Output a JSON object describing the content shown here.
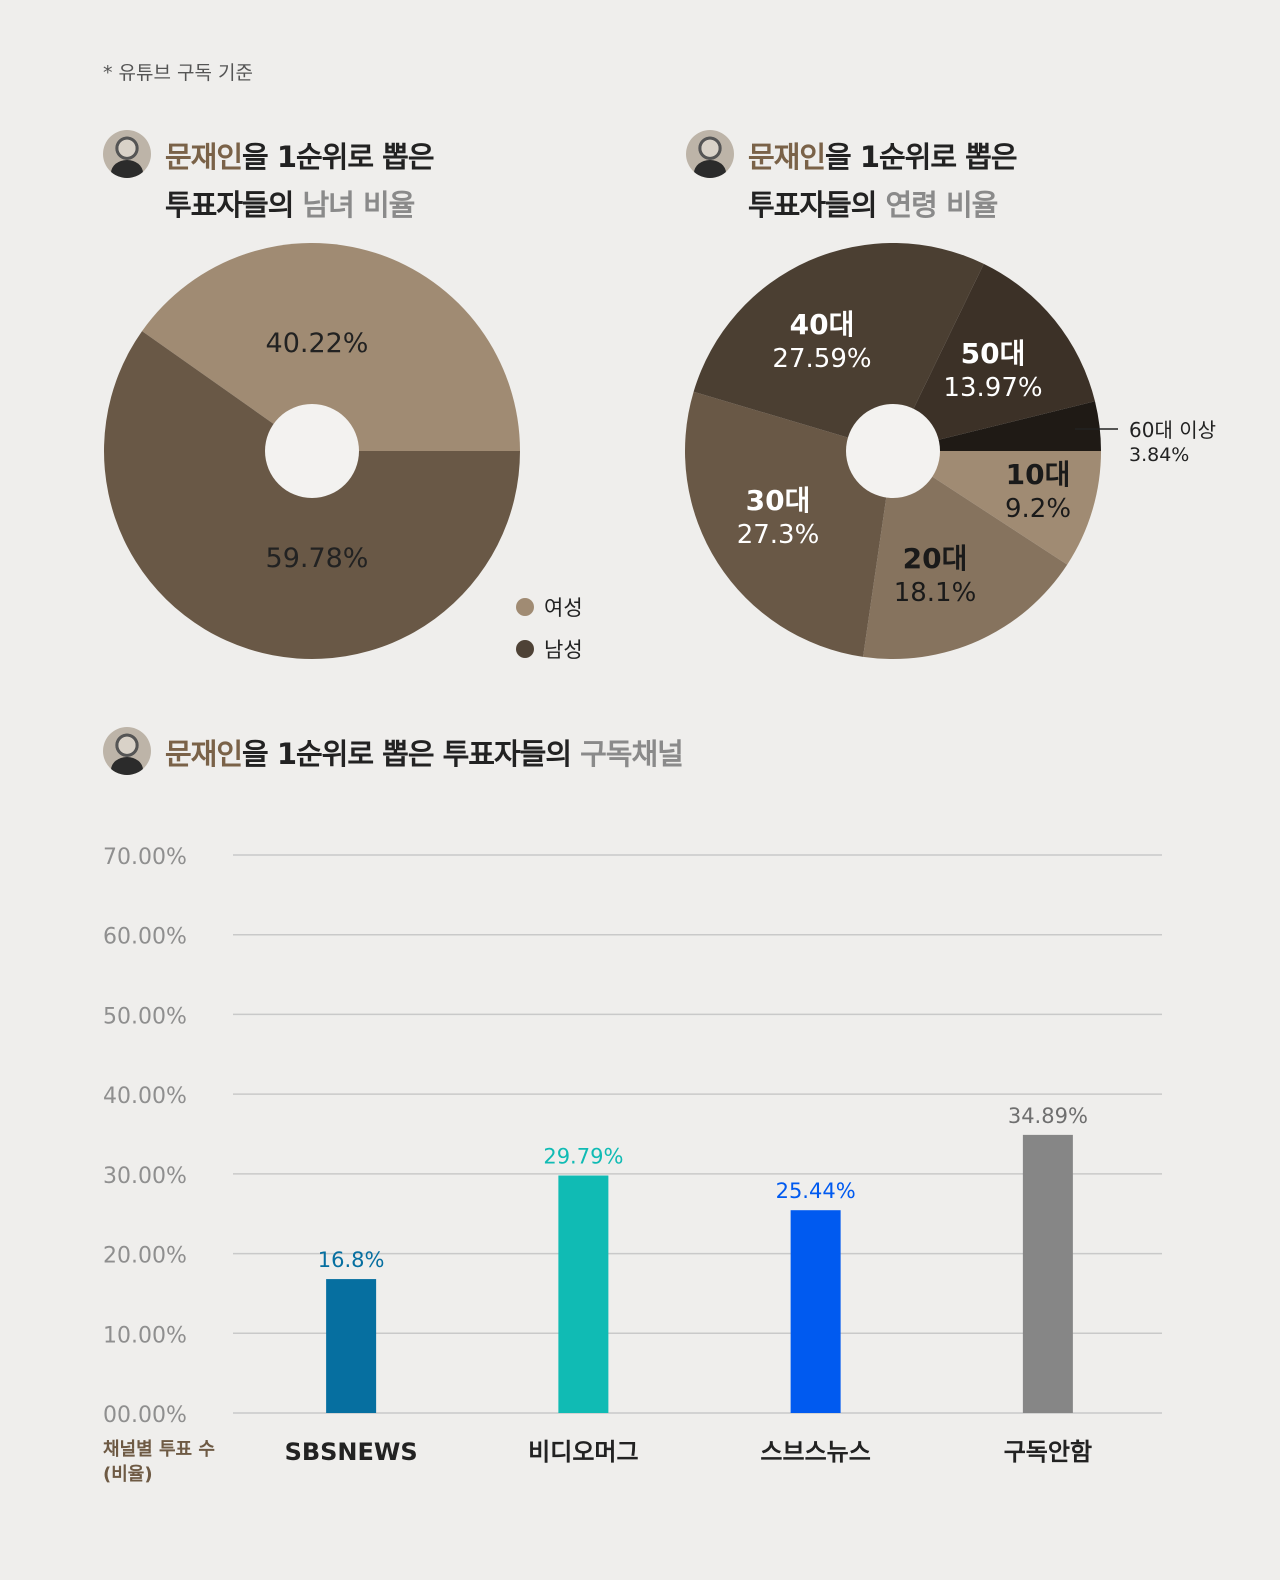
{
  "note": "* 유튜브 구독 기준",
  "colors": {
    "female": "#a08b73",
    "male": "#695846",
    "bar_sbs": "#066fa0",
    "bar_vidi": "#10bbb4",
    "bar_sbsnews": "#005af0",
    "bar_none": "#868686"
  },
  "titles": {
    "gender": {
      "name": "문재인",
      "rest1": "을 1순위로 뽑은",
      "line2a": "투표자들의 ",
      "line2b": "남녀 비율"
    },
    "age": {
      "name": "문재인",
      "rest1": "을 1순위로 뽑은",
      "line2a": "투표자들의 ",
      "line2b": "연령 비율"
    },
    "channel": {
      "name": "문재인",
      "rest1": "을 1순위로 뽑은 투표자들의 ",
      "hl": "구독채널"
    }
  },
  "chart_data": [
    {
      "type": "pie",
      "slices": [
        {
          "label": "여성",
          "value": 40.22,
          "text": "40.22%",
          "color": "#a08b73"
        },
        {
          "label": "남성",
          "value": 59.78,
          "text": "59.78%",
          "color": "#695846"
        }
      ],
      "legend": [
        "여성",
        "남성"
      ],
      "legend_colors": [
        "#a08b73",
        "#4e4236"
      ]
    },
    {
      "type": "pie",
      "slices": [
        {
          "label": "10대",
          "value": 9.2,
          "text": "9.2%",
          "color": "#a08b73"
        },
        {
          "label": "20대",
          "value": 18.1,
          "text": "18.1%",
          "color": "#86735e"
        },
        {
          "label": "30대",
          "value": 27.3,
          "text": "27.3%",
          "color": "#695846"
        },
        {
          "label": "40대",
          "value": 27.59,
          "text": "27.59%",
          "color": "#4b3f32"
        },
        {
          "label": "50대",
          "value": 13.97,
          "text": "13.97%",
          "color": "#3c3127"
        },
        {
          "label": "60대 이상",
          "value": 3.84,
          "text": "3.84%",
          "color": "#1f1a15"
        }
      ]
    },
    {
      "type": "bar",
      "categories": [
        "SBSNEWS",
        "비디오머그",
        "스브스뉴스",
        "구독안함"
      ],
      "values": [
        16.8,
        29.79,
        25.44,
        34.89
      ],
      "value_labels": [
        "16.8%",
        "29.79%",
        "25.44%",
        "34.89%"
      ],
      "colors": [
        "#066fa0",
        "#10bbb4",
        "#005af0",
        "#868686"
      ],
      "label_colors": [
        "#066fa0",
        "#10bbb4",
        "#005af0",
        "#6f6f6f"
      ],
      "ylim": [
        0,
        70
      ],
      "yticks": [
        "00.00%",
        "10.00%",
        "20.00%",
        "30.00%",
        "40.00%",
        "50.00%",
        "60.00%",
        "70.00%"
      ],
      "ylabel_line1": "채널별 투표 수",
      "ylabel_line2": "(비율)"
    }
  ]
}
